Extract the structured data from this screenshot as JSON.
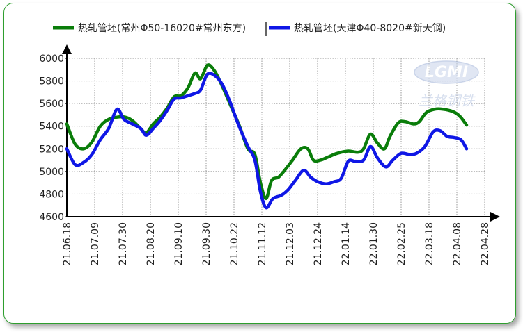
{
  "colors": {
    "frame": "#2e9e2e",
    "grid": "#9a9a9a",
    "axis": "#000000"
  },
  "watermark": {
    "logo_text": "LGMI",
    "sub_text": "兰格钢铁"
  },
  "chart_data": {
    "type": "line",
    "title": "",
    "xlabel": "",
    "ylabel": "",
    "ylim": [
      4600,
      6000
    ],
    "yticks": [
      4600,
      4800,
      5000,
      5200,
      5400,
      5600,
      5800,
      6000
    ],
    "grid": true,
    "legend_position": "top",
    "categories": [
      "21.06.18",
      "21.07.09",
      "21.07.30",
      "21.08.20",
      "21.09.10",
      "21.09.30",
      "21.10.22",
      "21.11.12",
      "21.12.03",
      "21.12.24",
      "22.01.14",
      "22.01.30",
      "22.02.25",
      "22.03.18",
      "22.04.08",
      "22.04.28"
    ],
    "series": [
      {
        "name": "热轧管坯(常州Φ50-16020#常州东方)",
        "color": "#0a7d0a",
        "values": [
          [
            0,
            5420
          ],
          [
            0.3,
            5240
          ],
          [
            0.6,
            5200
          ],
          [
            0.9,
            5260
          ],
          [
            1.2,
            5400
          ],
          [
            1.5,
            5460
          ],
          [
            1.8,
            5480
          ],
          [
            2.1,
            5480
          ],
          [
            2.35,
            5450
          ],
          [
            2.65,
            5380
          ],
          [
            2.85,
            5340
          ],
          [
            3.1,
            5420
          ],
          [
            3.35,
            5480
          ],
          [
            3.6,
            5560
          ],
          [
            3.85,
            5660
          ],
          [
            4.1,
            5670
          ],
          [
            4.35,
            5740
          ],
          [
            4.6,
            5870
          ],
          [
            4.8,
            5820
          ],
          [
            5.05,
            5940
          ],
          [
            5.3,
            5890
          ],
          [
            5.55,
            5770
          ],
          [
            5.85,
            5600
          ],
          [
            6.2,
            5400
          ],
          [
            6.5,
            5200
          ],
          [
            6.75,
            5150
          ],
          [
            6.95,
            4900
          ],
          [
            7.15,
            4760
          ],
          [
            7.35,
            4920
          ],
          [
            7.6,
            4950
          ],
          [
            7.85,
            5020
          ],
          [
            8.1,
            5100
          ],
          [
            8.4,
            5200
          ],
          [
            8.65,
            5200
          ],
          [
            8.85,
            5100
          ],
          [
            9.1,
            5100
          ],
          [
            9.4,
            5130
          ],
          [
            9.7,
            5160
          ],
          [
            10.1,
            5180
          ],
          [
            10.45,
            5170
          ],
          [
            10.65,
            5200
          ],
          [
            10.9,
            5330
          ],
          [
            11.15,
            5250
          ],
          [
            11.4,
            5200
          ],
          [
            11.6,
            5310
          ],
          [
            11.9,
            5430
          ],
          [
            12.15,
            5440
          ],
          [
            12.45,
            5420
          ],
          [
            12.65,
            5440
          ],
          [
            12.9,
            5520
          ],
          [
            13.2,
            5550
          ],
          [
            13.5,
            5550
          ],
          [
            13.85,
            5530
          ],
          [
            14.1,
            5490
          ],
          [
            14.35,
            5410
          ]
        ]
      },
      {
        "name": "热轧管坯(天津Φ40-8020#新天钢)",
        "color": "#0f17e6",
        "values": [
          [
            0,
            5200
          ],
          [
            0.3,
            5060
          ],
          [
            0.6,
            5080
          ],
          [
            0.9,
            5150
          ],
          [
            1.2,
            5280
          ],
          [
            1.5,
            5380
          ],
          [
            1.8,
            5550
          ],
          [
            2.05,
            5460
          ],
          [
            2.35,
            5420
          ],
          [
            2.65,
            5380
          ],
          [
            2.85,
            5320
          ],
          [
            3.1,
            5380
          ],
          [
            3.35,
            5450
          ],
          [
            3.6,
            5540
          ],
          [
            3.85,
            5640
          ],
          [
            4.1,
            5650
          ],
          [
            4.35,
            5670
          ],
          [
            4.6,
            5690
          ],
          [
            4.8,
            5720
          ],
          [
            5.05,
            5860
          ],
          [
            5.35,
            5840
          ],
          [
            5.6,
            5760
          ],
          [
            5.85,
            5620
          ],
          [
            6.15,
            5420
          ],
          [
            6.5,
            5220
          ],
          [
            6.75,
            5100
          ],
          [
            6.95,
            4820
          ],
          [
            7.15,
            4680
          ],
          [
            7.4,
            4760
          ],
          [
            7.7,
            4790
          ],
          [
            7.95,
            4840
          ],
          [
            8.2,
            4920
          ],
          [
            8.5,
            5010
          ],
          [
            8.75,
            4950
          ],
          [
            9.0,
            4910
          ],
          [
            9.3,
            4890
          ],
          [
            9.6,
            4910
          ],
          [
            9.85,
            4940
          ],
          [
            10.1,
            5090
          ],
          [
            10.35,
            5090
          ],
          [
            10.65,
            5100
          ],
          [
            10.9,
            5220
          ],
          [
            11.15,
            5120
          ],
          [
            11.45,
            5040
          ],
          [
            11.7,
            5100
          ],
          [
            12.0,
            5160
          ],
          [
            12.3,
            5150
          ],
          [
            12.55,
            5160
          ],
          [
            12.85,
            5220
          ],
          [
            13.15,
            5350
          ],
          [
            13.4,
            5360
          ],
          [
            13.65,
            5310
          ],
          [
            13.9,
            5300
          ],
          [
            14.15,
            5280
          ],
          [
            14.35,
            5200
          ]
        ]
      }
    ]
  }
}
